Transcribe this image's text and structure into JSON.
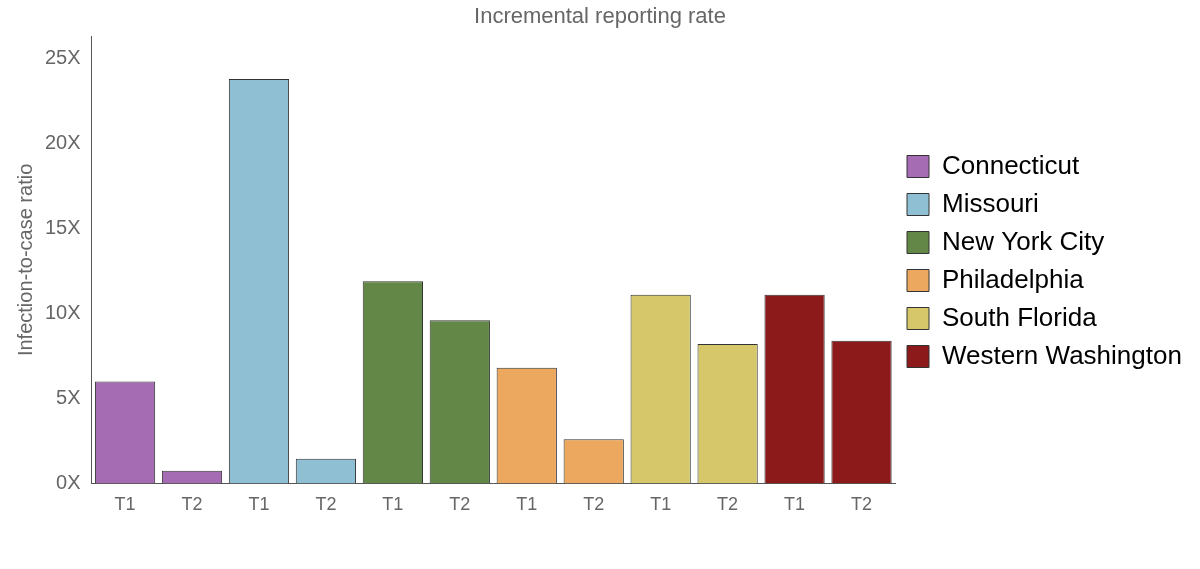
{
  "chart_data": {
    "type": "bar",
    "title": "Incremental reporting rate",
    "y_label": "Infection-to-case ratio",
    "categories": [
      "T1",
      "T2",
      "T1",
      "T2",
      "T1",
      "T2",
      "T1",
      "T2",
      "T1",
      "T2",
      "T1",
      "T2"
    ],
    "series": [
      {
        "name": "Connecticut",
        "color": "#a66cb3",
        "values": [
          6.0,
          0.75,
          null,
          null,
          null,
          null,
          null,
          null,
          null,
          null,
          null,
          null
        ]
      },
      {
        "name": "Missouri",
        "color": "#8fbfd3",
        "values": [
          null,
          null,
          23.8,
          1.45,
          null,
          null,
          null,
          null,
          null,
          null,
          null,
          null
        ]
      },
      {
        "name": "New York City",
        "color": "#628747",
        "values": [
          null,
          null,
          null,
          null,
          11.9,
          9.6,
          null,
          null,
          null,
          null,
          null,
          null
        ]
      },
      {
        "name": "Philadelphia",
        "color": "#eca85e",
        "values": [
          null,
          null,
          null,
          null,
          null,
          null,
          6.8,
          2.6,
          null,
          null,
          null,
          null
        ]
      },
      {
        "name": "South Florida",
        "color": "#d6c86a",
        "values": [
          null,
          null,
          null,
          null,
          null,
          null,
          null,
          null,
          11.1,
          8.2,
          null,
          null
        ]
      },
      {
        "name": "Western Washington",
        "color": "#8c1a1a",
        "values": [
          null,
          null,
          null,
          null,
          null,
          null,
          null,
          null,
          null,
          null,
          11.1,
          8.4
        ]
      }
    ],
    "ylim": [
      0,
      26.3
    ],
    "yticks": [
      {
        "value": 0,
        "label": "0X"
      },
      {
        "value": 5,
        "label": "5X"
      },
      {
        "value": 10,
        "label": "10X"
      },
      {
        "value": 15,
        "label": "15X"
      },
      {
        "value": 20,
        "label": "20X"
      },
      {
        "value": 25,
        "label": "25X"
      }
    ],
    "grid": false,
    "legend": "right"
  }
}
